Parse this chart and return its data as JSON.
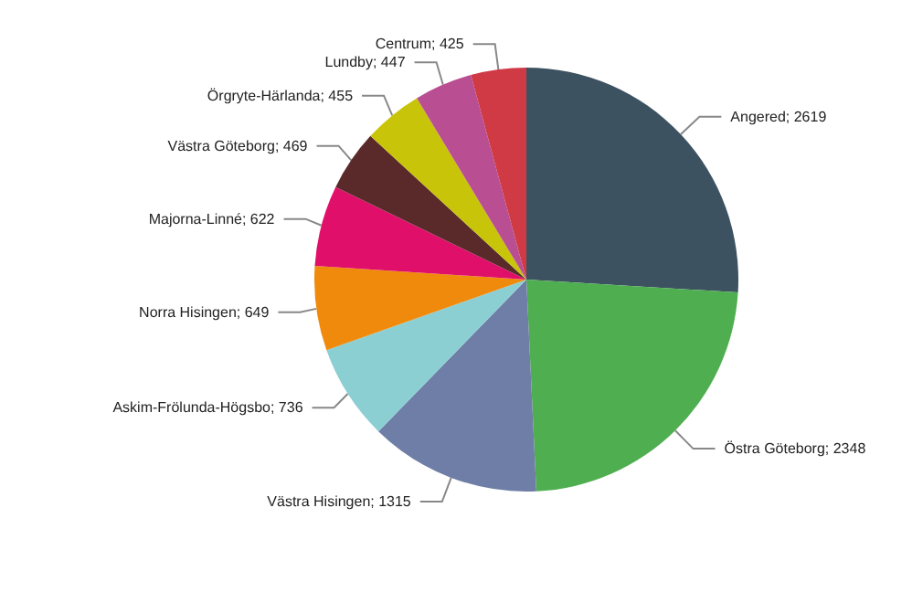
{
  "chart_data": {
    "type": "pie",
    "categories": [
      "Angered",
      "Östra Göteborg",
      "Västra Hisingen",
      "Askim-Frölunda-Högsbo",
      "Norra Hisingen",
      "Majorna-Linné",
      "Västra Göteborg",
      "Örgryte-Härlanda",
      "Lundby",
      "Centrum"
    ],
    "values": [
      2619,
      2348,
      1315,
      736,
      649,
      622,
      469,
      455,
      447,
      425
    ],
    "colors": [
      "#3d5261",
      "#4fae50",
      "#6e7ea6",
      "#8ccfd3",
      "#f08a0c",
      "#e0106a",
      "#5a2a2a",
      "#c8c40a",
      "#b94f92",
      "#d03a45"
    ],
    "value_labels": [
      "; 2619",
      "; 2348",
      "; 1315",
      "; 736",
      "; 649",
      "; 622",
      "; 469",
      "; 455",
      "; 447",
      "; 425"
    ],
    "legend": false
  }
}
